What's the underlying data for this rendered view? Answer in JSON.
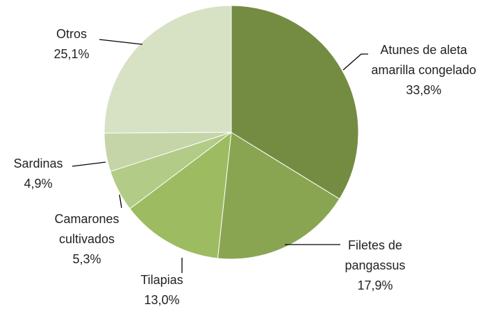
{
  "chart_data": {
    "type": "pie",
    "categories": [
      "Atunes de aleta amarilla congelado",
      "Filetes de pangassus",
      "Tilapias",
      "Camarones cultivados",
      "Sardinas",
      "Otros"
    ],
    "values": [
      33.8,
      17.9,
      13.0,
      5.3,
      4.9,
      25.1
    ],
    "value_labels": [
      "33,8%",
      "17,9%",
      "13,0%",
      "5,3%",
      "4,9%",
      "25,1%"
    ],
    "colors": [
      "#748c41",
      "#8aa552",
      "#9dbb60",
      "#b2cb87",
      "#c5d5a8",
      "#d7e1c4"
    ]
  }
}
